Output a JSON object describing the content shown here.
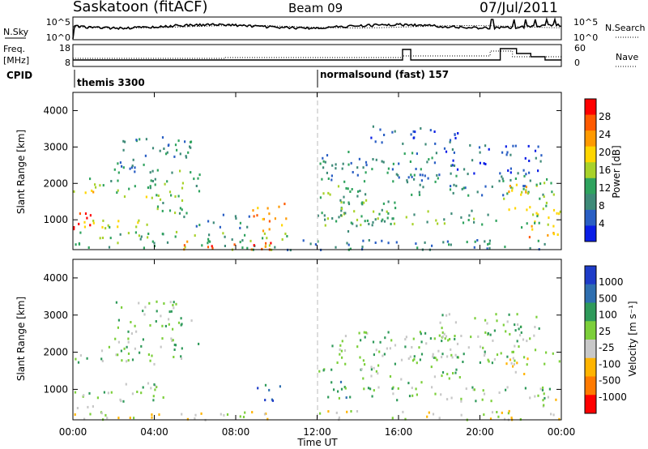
{
  "header": {
    "station": "Saskatoon (fitACF)",
    "beam": "Beam 09",
    "date": "07/Jul/2011"
  },
  "nsky_panel": {
    "left_label": "N.Sky",
    "right_label": "N.Search",
    "left_ticks": [
      "10^5",
      "10^0"
    ],
    "right_ticks": [
      "10^5",
      "10^0"
    ]
  },
  "freq_panel": {
    "left_label_1": "Freq.",
    "left_label_2": "[MHz]",
    "right_label": "Nave",
    "left_ticks": [
      "18",
      "8"
    ],
    "right_ticks": [
      "60",
      "0"
    ]
  },
  "cpid_panel": {
    "label": "CPID",
    "programs": [
      {
        "name": "themis 3300",
        "start_hour": 0
      },
      {
        "name": "normalsound (fast) 157",
        "start_hour": 12
      }
    ]
  },
  "power_colorbar": {
    "label": "Power [dB]",
    "ticks": [
      "28",
      "24",
      "20",
      "16",
      "12",
      "8",
      "4"
    ],
    "colors": [
      "#ff0000",
      "#ff5a00",
      "#ff9a00",
      "#ffd600",
      "#a8d22a",
      "#2fa35e",
      "#3e8a78",
      "#2a5fc4",
      "#0a1ee6"
    ]
  },
  "velocity_colorbar": {
    "label": "Velocity [m s⁻¹]",
    "ticks": [
      "1000",
      "500",
      "100",
      "25",
      "-25",
      "-100",
      "-500",
      "-1000"
    ],
    "colors": [
      "#1e3cc8",
      "#2f6fb0",
      "#2f9a5a",
      "#7ccf3a",
      "#c8c8c8",
      "#ffb400",
      "#ff7a00",
      "#ff0000"
    ]
  },
  "time_axis": {
    "title": "Time UT",
    "ticks": [
      "00:00",
      "04:00",
      "08:00",
      "12:00",
      "16:00",
      "20:00",
      "00:00"
    ]
  },
  "chart_data": [
    {
      "type": "heatmap",
      "title": "",
      "xlabel": "Time UT",
      "ylabel": "Slant Range [km]",
      "ylim": [
        180,
        4500
      ],
      "yticks": [
        "4000",
        "3000",
        "2000",
        "1000"
      ],
      "xlim_hours": [
        0,
        24
      ],
      "colorbar": "Power [dB]",
      "scatter_bands": [
        {
          "t0": 0.0,
          "t1": 4.6,
          "r0": 1850,
          "r1": 2200,
          "level": 3
        },
        {
          "t0": 0.0,
          "t1": 2.3,
          "r0": 1750,
          "r1": 1950,
          "level": 5
        },
        {
          "t0": 1.8,
          "t1": 5.5,
          "r0": 1500,
          "r1": 1800,
          "level": 4
        },
        {
          "t0": 0.0,
          "t1": 1.0,
          "r0": 600,
          "r1": 1300,
          "level": 8
        },
        {
          "t0": 0.0,
          "t1": 4.5,
          "r0": 800,
          "r1": 1100,
          "level": 4
        },
        {
          "t0": 3.5,
          "t1": 6.0,
          "r0": 1100,
          "r1": 1500,
          "level": 3
        },
        {
          "t0": 4.8,
          "t1": 6.2,
          "r0": 1800,
          "r1": 2400,
          "level": 3
        },
        {
          "t0": 2.0,
          "t1": 5.8,
          "r0": 2300,
          "r1": 3400,
          "level": 2
        },
        {
          "t0": 6.0,
          "t1": 8.8,
          "r0": 800,
          "r1": 1200,
          "level": 2
        },
        {
          "t0": 8.8,
          "t1": 10.5,
          "r0": 650,
          "r1": 1500,
          "level": 6
        },
        {
          "t0": 0.0,
          "t1": 10.5,
          "r0": 200,
          "r1": 700,
          "level": 3
        },
        {
          "t0": 5.0,
          "t1": 10.0,
          "r0": 200,
          "r1": 450,
          "level": 7
        },
        {
          "t0": 10.5,
          "t1": 24.0,
          "r0": 200,
          "r1": 500,
          "level": 2
        },
        {
          "t0": 12.0,
          "t1": 18.0,
          "r0": 2100,
          "r1": 2900,
          "level": 2
        },
        {
          "t0": 12.0,
          "t1": 14.5,
          "r0": 1500,
          "r1": 2200,
          "level": 3
        },
        {
          "t0": 12.0,
          "t1": 16.0,
          "r0": 650,
          "r1": 1600,
          "level": 3
        },
        {
          "t0": 13.0,
          "t1": 21.0,
          "r0": 900,
          "r1": 1300,
          "level": 3
        },
        {
          "t0": 15.5,
          "t1": 23.5,
          "r0": 1700,
          "r1": 2300,
          "level": 2
        },
        {
          "t0": 21.0,
          "t1": 22.5,
          "r0": 1300,
          "r1": 2000,
          "level": 5
        },
        {
          "t0": 22.0,
          "t1": 24.0,
          "r0": 800,
          "r1": 2100,
          "level": 4
        },
        {
          "t0": 22.3,
          "t1": 24.0,
          "r0": 500,
          "r1": 900,
          "level": 6
        },
        {
          "t0": 18.0,
          "t1": 23.0,
          "r0": 2300,
          "r1": 3100,
          "level": 1
        },
        {
          "t0": 14.5,
          "t1": 19.0,
          "r0": 3100,
          "r1": 3600,
          "level": 1
        }
      ]
    },
    {
      "type": "heatmap",
      "title": "",
      "xlabel": "Time UT",
      "ylabel": "Slant Range [km]",
      "ylim": [
        180,
        4500
      ],
      "yticks": [
        "4000",
        "3000",
        "2000",
        "1000"
      ],
      "xlim_hours": [
        0,
        24
      ],
      "colorbar": "Velocity [m s⁻¹]",
      "scatter_bands": [
        {
          "t0": 0.0,
          "t1": 4.6,
          "r0": 1700,
          "r1": 2200,
          "level": 4
        },
        {
          "t0": 0.0,
          "t1": 4.5,
          "r0": 700,
          "r1": 1200,
          "level": 4
        },
        {
          "t0": 0.0,
          "t1": 1.5,
          "r0": 300,
          "r1": 600,
          "level": 3
        },
        {
          "t0": 0.5,
          "t1": 10.5,
          "r0": 200,
          "r1": 450,
          "level": 3
        },
        {
          "t0": 2.0,
          "t1": 5.8,
          "r0": 2300,
          "r1": 3400,
          "level": 4
        },
        {
          "t0": 4.8,
          "t1": 6.2,
          "r0": 1800,
          "r1": 2300,
          "level": 4
        },
        {
          "t0": 9.0,
          "t1": 10.2,
          "r0": 700,
          "r1": 1200,
          "level": 6
        },
        {
          "t0": 12.0,
          "t1": 13.5,
          "r0": 800,
          "r1": 1600,
          "level": 5
        },
        {
          "t0": 12.0,
          "t1": 24.0,
          "r0": 200,
          "r1": 450,
          "level": 3
        },
        {
          "t0": 12.5,
          "t1": 19.0,
          "r0": 1200,
          "r1": 2600,
          "level": 4
        },
        {
          "t0": 13.0,
          "t1": 23.5,
          "r0": 700,
          "r1": 1100,
          "level": 4
        },
        {
          "t0": 17.5,
          "t1": 24.0,
          "r0": 1700,
          "r1": 2200,
          "level": 4
        },
        {
          "t0": 21.0,
          "t1": 22.5,
          "r0": 1400,
          "r1": 1900,
          "level": 2
        },
        {
          "t0": 22.6,
          "t1": 24.0,
          "r0": 550,
          "r1": 900,
          "level": 3
        },
        {
          "t0": 18.0,
          "t1": 23.0,
          "r0": 2300,
          "r1": 3100,
          "level": 4
        }
      ]
    }
  ]
}
